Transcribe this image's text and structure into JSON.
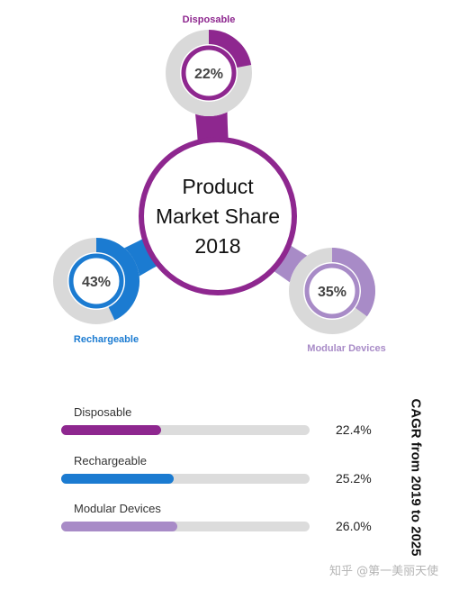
{
  "center_title": [
    "Product",
    "Market Share",
    "2018"
  ],
  "colors": {
    "disposable": "#8e278f",
    "rechargeable": "#1b7bd1",
    "modular": "#a88bc7",
    "ring_bg": "#d9d9d9",
    "center_ring": "#8e278f"
  },
  "chart_data": [
    {
      "type": "pie",
      "title": "Product Market Share 2018",
      "categories": [
        "Disposable",
        "Rechargeable",
        "Modular Devices"
      ],
      "values": [
        22,
        43,
        35
      ],
      "labels": [
        "22%",
        "43%",
        "35%"
      ],
      "series_colors": [
        "#8e278f",
        "#1b7bd1",
        "#a88bc7"
      ]
    },
    {
      "type": "bar",
      "title": "CAGR from 2019 to 2025",
      "categories": [
        "Disposable",
        "Rechargeable",
        "Modular Devices"
      ],
      "values": [
        22.4,
        25.2,
        26.0
      ],
      "labels": [
        "22.4%",
        "25.2%",
        "26.0%"
      ],
      "series_colors": [
        "#8e278f",
        "#1b7bd1",
        "#a88bc7"
      ]
    }
  ],
  "watermark": "知乎 @第一美丽天使"
}
